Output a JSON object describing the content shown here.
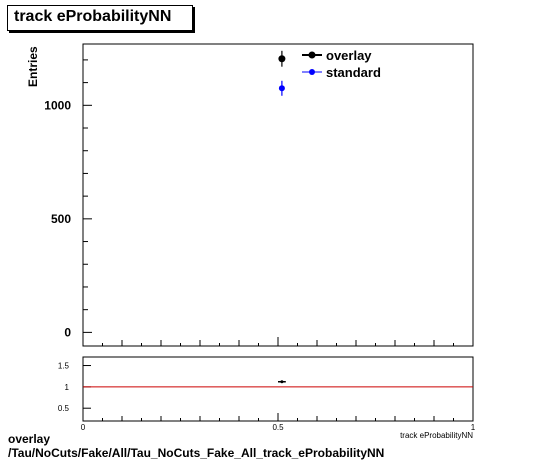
{
  "title": "track eProbabilityNN",
  "footer": {
    "line1": "overlay",
    "line2": "/Tau/NoCuts/Fake/All/Tau_NoCuts_Fake_All_track_eProbabilityNN"
  },
  "colors": {
    "overlay": "#000000",
    "standard": "#0000ff",
    "ratio_line": "#cc0000"
  },
  "chart_data": [
    {
      "type": "scatter",
      "title": "track eProbabilityNN",
      "ylabel": "Entries",
      "xlim": [
        0,
        1
      ],
      "ylim": [
        -60,
        1270
      ],
      "yticks": [
        0,
        500,
        1000
      ],
      "legend": "top-right",
      "series": [
        {
          "name": "overlay",
          "x": [
            0.51
          ],
          "y": [
            1205
          ],
          "yerr": [
            35
          ],
          "color": "#000000"
        },
        {
          "name": "standard",
          "x": [
            0.51
          ],
          "y": [
            1075
          ],
          "yerr": [
            33
          ],
          "color": "#0000ff"
        }
      ]
    },
    {
      "type": "scatter",
      "xlabel": "track eProbabilityNN",
      "xlim": [
        0,
        1
      ],
      "ylim": [
        0.2,
        1.7
      ],
      "xticks": [
        0,
        0.5,
        1
      ],
      "xtick_labels": [
        "0",
        "0.5",
        "1"
      ],
      "yticks": [
        0.5,
        1,
        1.5
      ],
      "ytick_labels": [
        "0.5",
        "1",
        "1.5"
      ],
      "reference_line": 1,
      "series": [
        {
          "name": "",
          "x": [
            0.51
          ],
          "y": [
            1.12
          ],
          "xerr": [
            0.01
          ],
          "yerr": [
            0.02
          ],
          "color": "#000000"
        }
      ]
    }
  ]
}
